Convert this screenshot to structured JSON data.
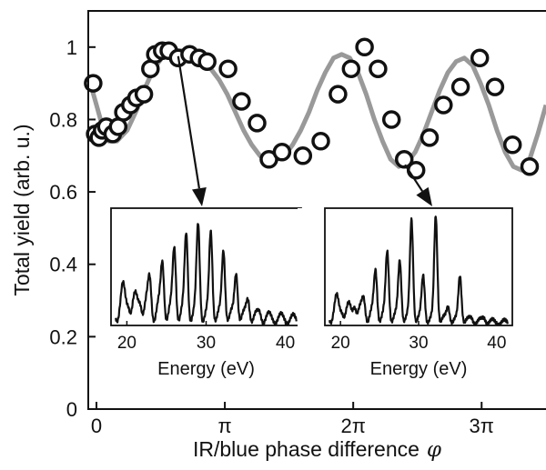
{
  "chart_data": {
    "type": "scatter",
    "xlabel": "IR/blue phase difference",
    "xlabel_symbol": "φ",
    "ylabel": "Total yield (arb. u.)",
    "xlim": [
      -0.2,
      11.0
    ],
    "ylim": [
      0,
      1.1
    ],
    "x_ticks": [
      {
        "value": 0,
        "label": "0"
      },
      {
        "value": 3.1416,
        "label": "π"
      },
      {
        "value": 6.2832,
        "label": "2π"
      },
      {
        "value": 9.4248,
        "label": "3π"
      }
    ],
    "y_ticks": [
      {
        "value": 0,
        "label": "0"
      },
      {
        "value": 0.2,
        "label": "0.2"
      },
      {
        "value": 0.4,
        "label": "0.4"
      },
      {
        "value": 0.6,
        "label": "0.6"
      },
      {
        "value": 0.8,
        "label": "0.8"
      },
      {
        "value": 1,
        "label": "1"
      }
    ],
    "series": [
      {
        "kind": "markers",
        "color": "#111111",
        "x": [
          -0.08,
          -0.03,
          0.06,
          0.14,
          0.24,
          0.4,
          0.53,
          0.66,
          0.83,
          0.98,
          1.16,
          1.32,
          1.44,
          1.61,
          1.77,
          2.0,
          2.28,
          2.51,
          2.71,
          3.22,
          3.55,
          3.93,
          4.22,
          4.54,
          5.05,
          5.49,
          5.91,
          6.23,
          6.56,
          6.89,
          7.22,
          7.53,
          7.82,
          8.15,
          8.49,
          8.91,
          9.38,
          9.75,
          10.18,
          10.6
        ],
        "y": [
          0.9,
          0.76,
          0.75,
          0.77,
          0.78,
          0.76,
          0.78,
          0.82,
          0.84,
          0.86,
          0.87,
          0.94,
          0.98,
          0.99,
          0.99,
          0.97,
          0.98,
          0.97,
          0.96,
          0.94,
          0.85,
          0.79,
          0.69,
          0.71,
          0.7,
          0.74,
          0.87,
          0.94,
          1.0,
          0.94,
          0.8,
          0.69,
          0.66,
          0.75,
          0.84,
          0.89,
          0.97,
          0.89,
          0.73,
          0.67
        ]
      },
      {
        "kind": "fit-line",
        "color": "#999999",
        "x": [
          -0.1,
          0.0,
          0.15,
          0.3,
          0.5,
          0.75,
          1.0,
          1.2,
          1.4,
          1.6,
          1.8,
          2.0,
          2.2,
          2.4,
          2.6,
          2.8,
          3.0,
          3.2,
          3.4,
          3.6,
          3.8,
          4.0,
          4.2,
          4.4,
          4.6,
          4.8,
          5.0,
          5.2,
          5.4,
          5.6,
          5.8,
          6.0,
          6.2,
          6.4,
          6.6,
          6.8,
          7.0,
          7.2,
          7.4,
          7.6,
          7.8,
          8.0,
          8.2,
          8.4,
          8.6,
          8.8,
          9.0,
          9.2,
          9.4,
          9.6,
          9.8,
          10.0,
          10.2,
          10.4,
          10.6,
          10.8,
          11.0
        ],
        "y": [
          0.88,
          0.84,
          0.78,
          0.74,
          0.74,
          0.77,
          0.83,
          0.89,
          0.94,
          0.97,
          0.99,
          0.99,
          0.99,
          0.98,
          0.96,
          0.94,
          0.91,
          0.87,
          0.82,
          0.77,
          0.73,
          0.7,
          0.69,
          0.69,
          0.7,
          0.73,
          0.77,
          0.82,
          0.88,
          0.93,
          0.97,
          0.98,
          0.97,
          0.93,
          0.87,
          0.8,
          0.74,
          0.69,
          0.67,
          0.68,
          0.71,
          0.76,
          0.82,
          0.88,
          0.93,
          0.96,
          0.97,
          0.95,
          0.9,
          0.84,
          0.77,
          0.71,
          0.67,
          0.66,
          0.69,
          0.76,
          0.84
        ]
      }
    ],
    "annotations": [
      {
        "kind": "arrow",
        "from": {
          "x": 2.0,
          "y": 0.975
        },
        "to": "inset-1"
      },
      {
        "kind": "arrow",
        "from": {
          "x": 7.55,
          "y": 0.675
        },
        "to": "inset-2"
      }
    ],
    "insets": [
      {
        "type": "line",
        "xlabel": "Energy (eV)",
        "xlim": [
          18,
          42
        ],
        "x_ticks": [
          20,
          30,
          40
        ],
        "x_tick_labels": [
          "20",
          "30",
          "40"
        ],
        "ylim": [
          0,
          1.05
        ],
        "background": {
          "x0": 18,
          "y0": 0.36,
          "decay": 0.055
        },
        "peaks": [
          {
            "x": 19.5,
            "h": 0.06
          },
          {
            "x": 20.2,
            "h": 0.12
          },
          {
            "x": 21.7,
            "h": 0.14
          },
          {
            "x": 22.9,
            "h": 0.25
          },
          {
            "x": 24.5,
            "h": 0.42
          },
          {
            "x": 26.0,
            "h": 0.55
          },
          {
            "x": 27.5,
            "h": 0.68
          },
          {
            "x": 29.0,
            "h": 0.77
          },
          {
            "x": 30.6,
            "h": 0.73
          },
          {
            "x": 32.2,
            "h": 0.58
          },
          {
            "x": 33.8,
            "h": 0.4
          },
          {
            "x": 35.3,
            "h": 0.17
          },
          {
            "x": 36.8,
            "h": 0.05
          },
          {
            "x": 38.5,
            "h": 0.01
          },
          {
            "x": 40.0,
            "h": 0.01
          }
        ]
      },
      {
        "type": "line",
        "xlabel": "Energy (eV)",
        "xlim": [
          18,
          42
        ],
        "x_ticks": [
          20,
          30,
          40
        ],
        "x_tick_labels": [
          "20",
          "30",
          "40"
        ],
        "ylim": [
          0,
          1.05
        ],
        "background": {
          "x0": 18,
          "y0": 0.26,
          "decay": 0.07
        },
        "peaks": [
          {
            "x": 19.5,
            "h": 0.05
          },
          {
            "x": 20.2,
            "h": 0.08
          },
          {
            "x": 21.8,
            "h": 0.14
          },
          {
            "x": 23.0,
            "h": 0.15
          },
          {
            "x": 24.5,
            "h": 0.4
          },
          {
            "x": 26.0,
            "h": 0.57
          },
          {
            "x": 27.6,
            "h": 0.51
          },
          {
            "x": 29.1,
            "h": 0.88
          },
          {
            "x": 30.6,
            "h": 0.38
          },
          {
            "x": 32.2,
            "h": 0.93
          },
          {
            "x": 33.8,
            "h": 0.13
          },
          {
            "x": 35.3,
            "h": 0.41
          },
          {
            "x": 36.8,
            "h": 0.03
          },
          {
            "x": 38.4,
            "h": 0.04
          }
        ]
      }
    ]
  }
}
